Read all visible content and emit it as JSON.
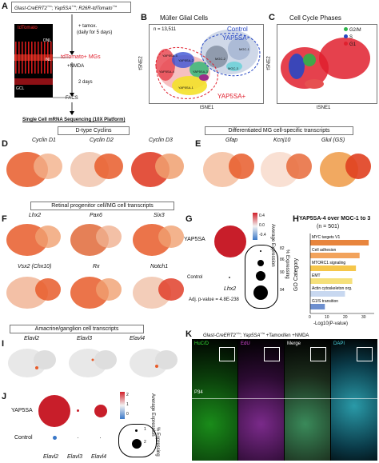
{
  "panels": {
    "A": "A",
    "B": "B",
    "C": "C",
    "D": "D",
    "E": "E",
    "F": "F",
    "G": "G",
    "H": "H",
    "I": "I",
    "J": "J",
    "K": "K"
  },
  "a": {
    "genotype": "Glast-CreERT2",
    "genotype_sup1": "+/o",
    "genotype_mid1": "; Yap5SA",
    "genotype_sup2": "+/o",
    "genotype_mid2": "; R26R-tdTomato",
    "genotype_sup3": "+/o",
    "img_label": "tdTomato",
    "onl": "ONL",
    "inl": "INL",
    "gcl": "GCL",
    "tamox": "+ tamox.",
    "tamox_days": "(daily for 5 days)",
    "mgs": "tdTomato+ MGs",
    "nmda": "+NMDA",
    "days2": "2 days",
    "facs": "FACS",
    "seq": "Single Cell mRNA Sequencing (10X Platform)"
  },
  "b": {
    "title": "Müller Glial Cells",
    "n": "n = 13,511",
    "control": "Control",
    "yap5sa_minus": "YAP5SA-",
    "yap5sa_plus": "YAP5SA+",
    "xlabel": "tSNE1",
    "ylabel": "tSNE2",
    "clusters": [
      "MGC-1",
      "MGC-2",
      "MGC-3",
      "YAP5SA-1",
      "YAP5SA-2",
      "YAP5SA-3",
      "YAP5SA-4",
      "YAP5SA-5"
    ]
  },
  "c": {
    "title": "Cell Cycle Phases",
    "legend": [
      "G2/M",
      "S",
      "G1"
    ],
    "colors": [
      "#2db34a",
      "#2747c4",
      "#e0202e"
    ],
    "xlabel": "tSNE1",
    "ylabel": "tSNE2"
  },
  "d": {
    "header": "D-type Cyclins",
    "genes": [
      "Cyclin D1",
      "Cyclin D2",
      "Cyclin D3"
    ]
  },
  "e": {
    "header": "Differentiated MG cell-specific transcripts",
    "genes": [
      "Gfap",
      "Kcnj10",
      "Glul (GS)"
    ]
  },
  "f": {
    "header": "Retinal progenitor cell/MG cell transcripts",
    "genes": [
      "Lhx2",
      "Pax6",
      "Six3",
      "Vsx2 (Chx10)",
      "Rx",
      "Notch1"
    ]
  },
  "g": {
    "rows": [
      "YAP5SA",
      "Control"
    ],
    "gene": "Lhx2",
    "pval": "Adj. p-value = 4.8E-238",
    "legend_title_expr": "Average Expression",
    "legend_title_pct": "% Expressing",
    "expr_ticks": [
      "0.4",
      "0.0",
      "-0.4"
    ],
    "pct_ticks": [
      "82",
      "86",
      "90",
      "94"
    ]
  },
  "h": {
    "title": "YAP5SA-4 over MGC-1 to 3",
    "n": "(n = 501)",
    "ylabel": "GO Category",
    "xlabel": "-Log10(P-value)",
    "xticks": [
      "0",
      "10",
      "20",
      "30"
    ]
  },
  "i": {
    "header": "Amacrine/ganglion cell transcripts",
    "genes": [
      "Elavl2",
      "Elavl3",
      "Elavl4"
    ]
  },
  "j": {
    "rows": [
      "YAP5SA",
      "Control"
    ],
    "genes": [
      "Elavl2",
      "Elavl3",
      "Elavl4"
    ],
    "legend_title_expr": "Average Expression",
    "legend_title_pct": "% Expressing",
    "expr_ticks": [
      "2",
      "1",
      "0"
    ],
    "pct_ticks": [
      "1",
      "2"
    ]
  },
  "k": {
    "title": "Glast-CreERT2",
    "title_sup1": "+/o",
    "title_mid": "; Yap5SA",
    "title_sup2": "+/o",
    "title_end": " +Tamoxifen +NMDA",
    "panels": [
      "HuC/D",
      "EdU",
      "Merge",
      "DAPI"
    ],
    "day": "P34"
  },
  "chart_data": [
    {
      "type": "bar",
      "title": "YAP5SA-4 over MGC-1 to 3",
      "categories": [
        "MYC targets V1",
        "Cell adhesion",
        "MTORC1 signaling",
        "EMT",
        "Actin cytoskeleton org.",
        "G1/S transition"
      ],
      "values": [
        32,
        27,
        25,
        23,
        19,
        8
      ],
      "colors": [
        "#e8853d",
        "#f2a35c",
        "#f5c64a",
        "#f5e07a",
        "#c8d8f0",
        "#6d8fcf"
      ],
      "xlabel": "-Log10(P-value)",
      "ylabel": "GO Category",
      "xlim": [
        0,
        35
      ]
    },
    {
      "type": "scatter",
      "categories": [
        "Lhx2"
      ],
      "series": [
        {
          "name": "YAP5SA",
          "values": [
            94
          ]
        },
        {
          "name": "Control",
          "values": [
            82
          ]
        }
      ],
      "ylabel": "% Expressing"
    }
  ]
}
